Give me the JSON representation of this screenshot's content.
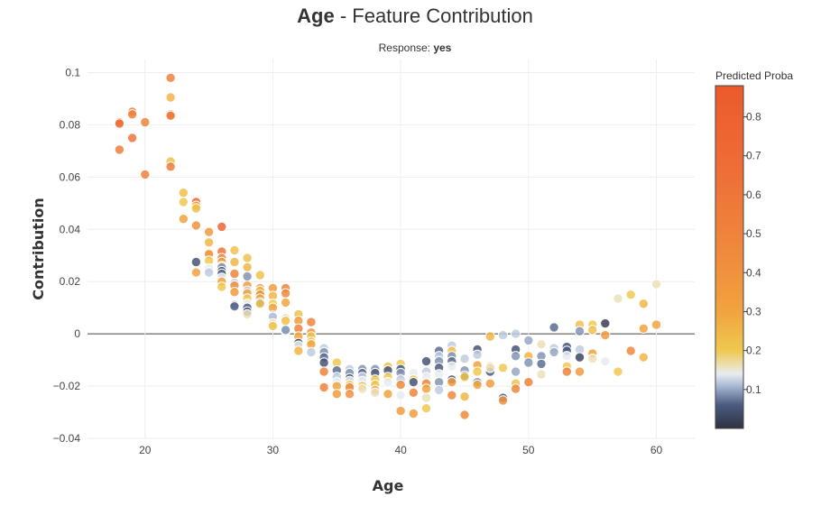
{
  "title": {
    "bold_part": "Age",
    "rest": " - Feature Contribution"
  },
  "subtitle": {
    "label": "Response: ",
    "value": "yes"
  },
  "chart_data": {
    "type": "scatter",
    "title": "Age - Feature Contribution",
    "subtitle": "Response: yes",
    "xlabel": "Age",
    "ylabel": "Contribution",
    "xlim": [
      15.5,
      63
    ],
    "ylim": [
      -0.04,
      0.105
    ],
    "x_ticks": [
      20,
      30,
      40,
      50,
      60
    ],
    "y_ticks": [
      -0.04,
      -0.02,
      0,
      0.02,
      0.04,
      0.06,
      0.08,
      0.1
    ],
    "x_tick_labels": [
      "20",
      "30",
      "40",
      "50",
      "60"
    ],
    "y_tick_labels": [
      "−0.04",
      "−0.02",
      "0",
      "0.02",
      "0.04",
      "0.06",
      "0.08",
      "0.1"
    ],
    "grid": true,
    "zero_line": true,
    "colorbar": {
      "title": "Predicted Proba",
      "range": [
        0,
        0.88
      ],
      "ticks": [
        0.1,
        0.2,
        0.3,
        0.4,
        0.5,
        0.6,
        0.7,
        0.8
      ],
      "tick_labels": [
        "0.1",
        "0.2",
        "0.3",
        "0.4",
        "0.5",
        "0.6",
        "0.7",
        "0.8"
      ],
      "colorscale": [
        [
          0.0,
          "#2f3240"
        ],
        [
          0.06,
          "#4a5a80"
        ],
        [
          0.11,
          "#a9bbd6"
        ],
        [
          0.14,
          "#e9ecef"
        ],
        [
          0.2,
          "#f0c850"
        ],
        [
          0.3,
          "#f1a33f"
        ],
        [
          0.45,
          "#ef8a3d"
        ],
        [
          0.65,
          "#ee6f37"
        ],
        [
          0.88,
          "#ec5a2c"
        ]
      ]
    },
    "points": [
      {
        "x": 18,
        "y": 0.081,
        "p": 0.7
      },
      {
        "x": 18,
        "y": 0.0805,
        "p": 0.65
      },
      {
        "x": 18,
        "y": 0.0705,
        "p": 0.55
      },
      {
        "x": 19,
        "y": 0.085,
        "p": 0.55
      },
      {
        "x": 19,
        "y": 0.084,
        "p": 0.5
      },
      {
        "x": 19,
        "y": 0.075,
        "p": 0.6
      },
      {
        "x": 20,
        "y": 0.081,
        "p": 0.5
      },
      {
        "x": 20,
        "y": 0.061,
        "p": 0.5
      },
      {
        "x": 22,
        "y": 0.098,
        "p": 0.5
      },
      {
        "x": 22,
        "y": 0.0905,
        "p": 0.25
      },
      {
        "x": 22,
        "y": 0.084,
        "p": 0.65
      },
      {
        "x": 22,
        "y": 0.0835,
        "p": 0.55
      },
      {
        "x": 22,
        "y": 0.066,
        "p": 0.22
      },
      {
        "x": 22,
        "y": 0.064,
        "p": 0.55
      },
      {
        "x": 23,
        "y": 0.054,
        "p": 0.22
      },
      {
        "x": 23,
        "y": 0.0505,
        "p": 0.2
      },
      {
        "x": 23,
        "y": 0.044,
        "p": 0.3
      },
      {
        "x": 24,
        "y": 0.0505,
        "p": 0.75
      },
      {
        "x": 24,
        "y": 0.049,
        "p": 0.3
      },
      {
        "x": 24,
        "y": 0.048,
        "p": 0.22
      },
      {
        "x": 24,
        "y": 0.0415,
        "p": 0.4
      },
      {
        "x": 24,
        "y": 0.0275,
        "p": 0.05
      },
      {
        "x": 24,
        "y": 0.0235,
        "p": 0.3
      },
      {
        "x": 25,
        "y": 0.039,
        "p": 0.35
      },
      {
        "x": 25,
        "y": 0.035,
        "p": 0.25
      },
      {
        "x": 25,
        "y": 0.031,
        "p": 0.2
      },
      {
        "x": 25,
        "y": 0.0305,
        "p": 0.4
      },
      {
        "x": 25,
        "y": 0.028,
        "p": 0.2
      },
      {
        "x": 25,
        "y": 0.025,
        "p": 0.14
      },
      {
        "x": 25,
        "y": 0.0235,
        "p": 0.12
      },
      {
        "x": 26,
        "y": 0.041,
        "p": 0.75
      },
      {
        "x": 26,
        "y": 0.0315,
        "p": 0.6
      },
      {
        "x": 26,
        "y": 0.029,
        "p": 0.45
      },
      {
        "x": 26,
        "y": 0.0275,
        "p": 0.35
      },
      {
        "x": 26,
        "y": 0.026,
        "p": 0.22
      },
      {
        "x": 26,
        "y": 0.0255,
        "p": 0.09
      },
      {
        "x": 26,
        "y": 0.024,
        "p": 0.05
      },
      {
        "x": 26,
        "y": 0.023,
        "p": 0.07
      },
      {
        "x": 26,
        "y": 0.0215,
        "p": 0.14
      },
      {
        "x": 26,
        "y": 0.02,
        "p": 0.3
      },
      {
        "x": 26,
        "y": 0.018,
        "p": 0.2
      },
      {
        "x": 27,
        "y": 0.032,
        "p": 0.22
      },
      {
        "x": 27,
        "y": 0.0275,
        "p": 0.25
      },
      {
        "x": 27,
        "y": 0.023,
        "p": 0.5
      },
      {
        "x": 27,
        "y": 0.0195,
        "p": 0.12
      },
      {
        "x": 27,
        "y": 0.0185,
        "p": 0.4
      },
      {
        "x": 27,
        "y": 0.016,
        "p": 0.35
      },
      {
        "x": 27,
        "y": 0.011,
        "p": 0.05
      },
      {
        "x": 27,
        "y": 0.0105,
        "p": 0.07
      },
      {
        "x": 28,
        "y": 0.029,
        "p": 0.22
      },
      {
        "x": 28,
        "y": 0.0255,
        "p": 0.25
      },
      {
        "x": 28,
        "y": 0.022,
        "p": 0.09
      },
      {
        "x": 28,
        "y": 0.0185,
        "p": 0.35
      },
      {
        "x": 28,
        "y": 0.0165,
        "p": 0.12
      },
      {
        "x": 28,
        "y": 0.0155,
        "p": 0.3
      },
      {
        "x": 28,
        "y": 0.0135,
        "p": 0.2
      },
      {
        "x": 28,
        "y": 0.0115,
        "p": 0.14
      },
      {
        "x": 28,
        "y": 0.01,
        "p": 0.06
      },
      {
        "x": 28,
        "y": 0.0085,
        "p": 0.05
      },
      {
        "x": 28,
        "y": 0.0075,
        "p": 0.16
      },
      {
        "x": 29,
        "y": 0.0225,
        "p": 0.22
      },
      {
        "x": 29,
        "y": 0.0175,
        "p": 0.35
      },
      {
        "x": 29,
        "y": 0.0165,
        "p": 0.25
      },
      {
        "x": 29,
        "y": 0.015,
        "p": 0.45
      },
      {
        "x": 29,
        "y": 0.0135,
        "p": 0.3
      },
      {
        "x": 29,
        "y": 0.012,
        "p": 0.05
      },
      {
        "x": 29,
        "y": 0.0115,
        "p": 0.2
      },
      {
        "x": 30,
        "y": 0.0175,
        "p": 0.35
      },
      {
        "x": 30,
        "y": 0.0145,
        "p": 0.25
      },
      {
        "x": 30,
        "y": 0.0115,
        "p": 0.2
      },
      {
        "x": 30,
        "y": 0.01,
        "p": 0.3
      },
      {
        "x": 30,
        "y": 0.007,
        "p": 0.09
      },
      {
        "x": 30,
        "y": 0.0065,
        "p": 0.12
      },
      {
        "x": 30,
        "y": 0.004,
        "p": 0.16
      },
      {
        "x": 30,
        "y": 0.003,
        "p": 0.22
      },
      {
        "x": 31,
        "y": 0.0175,
        "p": 0.5
      },
      {
        "x": 31,
        "y": 0.0155,
        "p": 0.45
      },
      {
        "x": 31,
        "y": 0.012,
        "p": 0.3
      },
      {
        "x": 31,
        "y": 0.006,
        "p": 0.16
      },
      {
        "x": 31,
        "y": 0.005,
        "p": 0.22
      },
      {
        "x": 31,
        "y": 0.001,
        "p": 0.12
      },
      {
        "x": 31,
        "y": 0.0015,
        "p": 0.09
      },
      {
        "x": 32,
        "y": 0.0075,
        "p": 0.22
      },
      {
        "x": 32,
        "y": 0.005,
        "p": 0.35
      },
      {
        "x": 32,
        "y": 0.002,
        "p": 0.5
      },
      {
        "x": 32,
        "y": -0.001,
        "p": 0.3
      },
      {
        "x": 32,
        "y": -0.0035,
        "p": 0.02
      },
      {
        "x": 32,
        "y": -0.0045,
        "p": 0.14
      },
      {
        "x": 32,
        "y": -0.0065,
        "p": 0.25
      },
      {
        "x": 33,
        "y": 0.0045,
        "p": 0.5
      },
      {
        "x": 33,
        "y": 0.0005,
        "p": 0.4
      },
      {
        "x": 33,
        "y": -0.001,
        "p": 0.22
      },
      {
        "x": 33,
        "y": -0.003,
        "p": 0.2
      },
      {
        "x": 33,
        "y": -0.004,
        "p": 0.3
      },
      {
        "x": 33,
        "y": -0.007,
        "p": 0.12
      },
      {
        "x": 34,
        "y": -0.0055,
        "p": 0.12
      },
      {
        "x": 34,
        "y": -0.007,
        "p": 0.09
      },
      {
        "x": 34,
        "y": -0.009,
        "p": 0.07
      },
      {
        "x": 34,
        "y": -0.011,
        "p": 0.05
      },
      {
        "x": 34,
        "y": -0.0145,
        "p": 0.5
      },
      {
        "x": 34,
        "y": -0.0205,
        "p": 0.5
      },
      {
        "x": 35,
        "y": -0.011,
        "p": 0.2
      },
      {
        "x": 35,
        "y": -0.014,
        "p": 0.07
      },
      {
        "x": 35,
        "y": -0.0165,
        "p": 0.12
      },
      {
        "x": 35,
        "y": -0.0185,
        "p": 0.14
      },
      {
        "x": 35,
        "y": -0.02,
        "p": 0.3
      },
      {
        "x": 35,
        "y": -0.023,
        "p": 0.35
      },
      {
        "x": 36,
        "y": -0.0135,
        "p": 0.12
      },
      {
        "x": 36,
        "y": -0.015,
        "p": 0.09
      },
      {
        "x": 36,
        "y": -0.017,
        "p": 0.05
      },
      {
        "x": 36,
        "y": -0.018,
        "p": 0.14
      },
      {
        "x": 36,
        "y": -0.0195,
        "p": 0.2
      },
      {
        "x": 36,
        "y": -0.0205,
        "p": 0.45
      },
      {
        "x": 36,
        "y": -0.023,
        "p": 0.4
      },
      {
        "x": 37,
        "y": -0.0135,
        "p": 0.09
      },
      {
        "x": 37,
        "y": -0.015,
        "p": 0.07
      },
      {
        "x": 37,
        "y": -0.0165,
        "p": 0.12
      },
      {
        "x": 37,
        "y": -0.018,
        "p": 0.14
      },
      {
        "x": 37,
        "y": -0.02,
        "p": 0.25
      },
      {
        "x": 37,
        "y": -0.021,
        "p": 0.16
      },
      {
        "x": 38,
        "y": -0.0135,
        "p": 0.09
      },
      {
        "x": 38,
        "y": -0.015,
        "p": 0.06
      },
      {
        "x": 38,
        "y": -0.0175,
        "p": 0.2
      },
      {
        "x": 38,
        "y": -0.0195,
        "p": 0.22
      },
      {
        "x": 38,
        "y": -0.0215,
        "p": 0.3
      },
      {
        "x": 38,
        "y": -0.0225,
        "p": 0.16
      },
      {
        "x": 39,
        "y": -0.0125,
        "p": 0.22
      },
      {
        "x": 39,
        "y": -0.014,
        "p": 0.05
      },
      {
        "x": 39,
        "y": -0.0165,
        "p": 0.2
      },
      {
        "x": 39,
        "y": -0.0185,
        "p": 0.14
      },
      {
        "x": 39,
        "y": -0.023,
        "p": 0.3
      },
      {
        "x": 40,
        "y": -0.0115,
        "p": 0.2
      },
      {
        "x": 40,
        "y": -0.0135,
        "p": 0.06
      },
      {
        "x": 40,
        "y": -0.015,
        "p": 0.09
      },
      {
        "x": 40,
        "y": -0.0175,
        "p": 0.12
      },
      {
        "x": 40,
        "y": -0.0195,
        "p": 0.45
      },
      {
        "x": 40,
        "y": -0.0235,
        "p": 0.14
      },
      {
        "x": 40,
        "y": -0.0295,
        "p": 0.35
      },
      {
        "x": 41,
        "y": -0.015,
        "p": 0.14
      },
      {
        "x": 41,
        "y": -0.0175,
        "p": 0.2
      },
      {
        "x": 41,
        "y": -0.0185,
        "p": 0.06
      },
      {
        "x": 41,
        "y": -0.0225,
        "p": 0.5
      },
      {
        "x": 41,
        "y": -0.0305,
        "p": 0.35
      },
      {
        "x": 42,
        "y": -0.0105,
        "p": 0.05
      },
      {
        "x": 42,
        "y": -0.0145,
        "p": 0.12
      },
      {
        "x": 42,
        "y": -0.0165,
        "p": 0.14
      },
      {
        "x": 42,
        "y": -0.019,
        "p": 0.5
      },
      {
        "x": 42,
        "y": -0.021,
        "p": 0.3
      },
      {
        "x": 42,
        "y": -0.0245,
        "p": 0.16
      },
      {
        "x": 42,
        "y": -0.0285,
        "p": 0.2
      },
      {
        "x": 43,
        "y": -0.0065,
        "p": 0.07
      },
      {
        "x": 43,
        "y": -0.0085,
        "p": 0.12
      },
      {
        "x": 43,
        "y": -0.0105,
        "p": 0.09
      },
      {
        "x": 43,
        "y": -0.013,
        "p": 0.06
      },
      {
        "x": 43,
        "y": -0.0155,
        "p": 0.14
      },
      {
        "x": 43,
        "y": -0.0185,
        "p": 0.09
      },
      {
        "x": 43,
        "y": -0.0215,
        "p": 0.12
      },
      {
        "x": 44,
        "y": -0.0045,
        "p": 0.12
      },
      {
        "x": 44,
        "y": -0.0065,
        "p": 0.22
      },
      {
        "x": 44,
        "y": -0.0085,
        "p": 0.09
      },
      {
        "x": 44,
        "y": -0.0105,
        "p": 0.07
      },
      {
        "x": 44,
        "y": -0.0125,
        "p": 0.14
      },
      {
        "x": 44,
        "y": -0.0175,
        "p": 0.06
      },
      {
        "x": 44,
        "y": -0.0185,
        "p": 0.35
      },
      {
        "x": 44,
        "y": -0.0235,
        "p": 0.45
      },
      {
        "x": 45,
        "y": -0.0095,
        "p": 0.12
      },
      {
        "x": 45,
        "y": -0.014,
        "p": 0.09
      },
      {
        "x": 45,
        "y": -0.016,
        "p": 0.02
      },
      {
        "x": 45,
        "y": -0.0165,
        "p": 0.2
      },
      {
        "x": 45,
        "y": -0.024,
        "p": 0.25
      },
      {
        "x": 45,
        "y": -0.031,
        "p": 0.45
      },
      {
        "x": 46,
        "y": -0.006,
        "p": 0.05
      },
      {
        "x": 46,
        "y": -0.008,
        "p": 0.12
      },
      {
        "x": 46,
        "y": -0.012,
        "p": 0.3
      },
      {
        "x": 46,
        "y": -0.0145,
        "p": 0.2
      },
      {
        "x": 46,
        "y": -0.0185,
        "p": 0.09
      },
      {
        "x": 46,
        "y": -0.0195,
        "p": 0.3
      },
      {
        "x": 47,
        "y": -0.001,
        "p": 0.25
      },
      {
        "x": 47,
        "y": -0.0125,
        "p": 0.3
      },
      {
        "x": 47,
        "y": -0.0145,
        "p": 0.06
      },
      {
        "x": 47,
        "y": -0.013,
        "p": 0.16
      },
      {
        "x": 47,
        "y": -0.019,
        "p": 0.35
      },
      {
        "x": 48,
        "y": -0.0005,
        "p": 0.12
      },
      {
        "x": 48,
        "y": -0.013,
        "p": 0.2
      },
      {
        "x": 48,
        "y": -0.0245,
        "p": 0.06
      },
      {
        "x": 48,
        "y": -0.0255,
        "p": 0.4
      },
      {
        "x": 49,
        "y": 0.0,
        "p": 0.12
      },
      {
        "x": 49,
        "y": -0.006,
        "p": 0.05
      },
      {
        "x": 49,
        "y": -0.0085,
        "p": 0.09
      },
      {
        "x": 49,
        "y": -0.0145,
        "p": 0.1
      },
      {
        "x": 49,
        "y": -0.019,
        "p": 0.22
      },
      {
        "x": 49,
        "y": -0.021,
        "p": 0.45
      },
      {
        "x": 50,
        "y": -0.0025,
        "p": 0.1
      },
      {
        "x": 50,
        "y": -0.0085,
        "p": 0.25
      },
      {
        "x": 50,
        "y": -0.011,
        "p": 0.09
      },
      {
        "x": 50,
        "y": -0.0185,
        "p": 0.5
      },
      {
        "x": 51,
        "y": -0.004,
        "p": 0.16
      },
      {
        "x": 51,
        "y": -0.0085,
        "p": 0.09
      },
      {
        "x": 51,
        "y": -0.0115,
        "p": 0.07
      },
      {
        "x": 51,
        "y": -0.0155,
        "p": 0.16
      },
      {
        "x": 52,
        "y": 0.0025,
        "p": 0.07
      },
      {
        "x": 52,
        "y": -0.0055,
        "p": 0.12
      },
      {
        "x": 52,
        "y": -0.007,
        "p": 0.1
      },
      {
        "x": 53,
        "y": -0.005,
        "p": 0.05
      },
      {
        "x": 53,
        "y": -0.0065,
        "p": 0.06
      },
      {
        "x": 53,
        "y": -0.0085,
        "p": 0.14
      },
      {
        "x": 53,
        "y": -0.0125,
        "p": 0.2
      },
      {
        "x": 53,
        "y": -0.0145,
        "p": 0.5
      },
      {
        "x": 54,
        "y": 0.0035,
        "p": 0.22
      },
      {
        "x": 54,
        "y": 0.001,
        "p": 0.09
      },
      {
        "x": 54,
        "y": -0.006,
        "p": 0.12
      },
      {
        "x": 54,
        "y": -0.009,
        "p": 0.03
      },
      {
        "x": 54,
        "y": -0.0145,
        "p": 0.35
      },
      {
        "x": 55,
        "y": 0.0035,
        "p": 0.2
      },
      {
        "x": 55,
        "y": 0.0015,
        "p": 0.22
      },
      {
        "x": 55,
        "y": -0.0075,
        "p": 0.3
      },
      {
        "x": 55,
        "y": -0.0095,
        "p": 0.16
      },
      {
        "x": 56,
        "y": 0.004,
        "p": 0.02
      },
      {
        "x": 56,
        "y": -0.0005,
        "p": 0.35
      },
      {
        "x": 56,
        "y": -0.0105,
        "p": 0.14
      },
      {
        "x": 57,
        "y": 0.0135,
        "p": 0.16
      },
      {
        "x": 57,
        "y": -0.0145,
        "p": 0.2
      },
      {
        "x": 58,
        "y": 0.015,
        "p": 0.2
      },
      {
        "x": 58,
        "y": -0.0065,
        "p": 0.45
      },
      {
        "x": 59,
        "y": 0.0115,
        "p": 0.25
      },
      {
        "x": 59,
        "y": 0.002,
        "p": 0.3
      },
      {
        "x": 59,
        "y": -0.009,
        "p": 0.25
      },
      {
        "x": 60,
        "y": 0.019,
        "p": 0.16
      },
      {
        "x": 60,
        "y": 0.0035,
        "p": 0.3
      }
    ]
  }
}
